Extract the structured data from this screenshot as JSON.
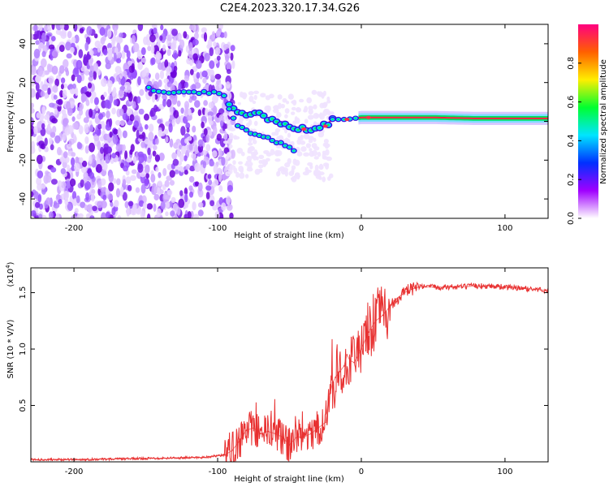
{
  "title": "C2E4.2023.320.17.34.G26",
  "chart_data": [
    {
      "type": "heatmap",
      "name": "spectrogram",
      "xlabel": "Height of straight line (km)",
      "ylabel": "Frequency (Hz)",
      "xlim": [
        -230,
        130
      ],
      "ylim": [
        -50,
        50
      ],
      "x_ticks": [
        -200,
        -100,
        0,
        100
      ],
      "x_tick_labels": [
        "-200",
        "-100",
        "0",
        "100"
      ],
      "y_ticks": [
        -40,
        -20,
        0,
        20,
        40
      ],
      "y_tick_labels": [
        "-40",
        "-20",
        "0",
        "20",
        "40"
      ],
      "noise_region_x": [
        -230,
        -93
      ],
      "signal_track": {
        "upper_branch": [
          [
            -148,
            17
          ],
          [
            -140,
            15.5
          ],
          [
            -130,
            15
          ],
          [
            -120,
            15
          ],
          [
            -110,
            15
          ],
          [
            -100,
            15
          ],
          [
            -95,
            13
          ]
        ],
        "main_branch": [
          [
            -92,
            8
          ],
          [
            -85,
            4
          ],
          [
            -80,
            2
          ],
          [
            -75,
            5
          ],
          [
            -70,
            3
          ],
          [
            -65,
            1
          ],
          [
            -60,
            0
          ],
          [
            -55,
            -1
          ],
          [
            -50,
            -2
          ],
          [
            -45,
            -3
          ],
          [
            -40,
            -4
          ],
          [
            -35,
            -4.5
          ],
          [
            -30,
            -3
          ],
          [
            -25,
            -2
          ],
          [
            -20,
            1
          ],
          [
            -15,
            1
          ],
          [
            -10,
            1
          ],
          [
            -5,
            1.5
          ],
          [
            0,
            2
          ],
          [
            20,
            2
          ],
          [
            50,
            2
          ],
          [
            80,
            1.5
          ],
          [
            100,
            1.5
          ],
          [
            130,
            1.5
          ]
        ],
        "lower_branch": [
          [
            -92,
            6
          ],
          [
            -85,
            -3
          ],
          [
            -78,
            -6
          ],
          [
            -70,
            -8
          ],
          [
            -60,
            -10
          ],
          [
            -55,
            -12
          ],
          [
            -50,
            -14
          ],
          [
            -45,
            -16
          ]
        ]
      },
      "colorbar": {
        "label": "Normalized spectral amplitude",
        "range": [
          0,
          1
        ],
        "ticks": [
          0.0,
          0.2,
          0.4,
          0.6,
          0.8
        ],
        "tick_labels": [
          "0.0",
          "0.2",
          "0.4",
          "0.6",
          "0.8"
        ],
        "colors": [
          "#ffffff",
          "#a000ff",
          "#0030ff",
          "#00e5ff",
          "#00ff30",
          "#ffee00",
          "#ff6000",
          "#ff0080"
        ]
      }
    },
    {
      "type": "line",
      "name": "snr",
      "xlabel": "Height of straight line (km)",
      "ylabel": "SNR (10 * V/V)",
      "scale_label": "(x10",
      "scale_exponent": "4",
      "scale_close": ")",
      "xlim": [
        -230,
        130
      ],
      "ylim": [
        0,
        1.72
      ],
      "x_ticks": [
        -200,
        -100,
        0,
        100
      ],
      "x_tick_labels": [
        "-200",
        "-100",
        "0",
        "100"
      ],
      "y_ticks": [
        0.5,
        1.0,
        1.5
      ],
      "y_tick_labels": [
        "0.5",
        "1.0",
        "1.5"
      ],
      "line_color": "#e83030",
      "series": [
        {
          "name": "SNR",
          "x": [
            -230,
            -200,
            -150,
            -110,
            -95,
            -90,
            -85,
            -80,
            -75,
            -70,
            -65,
            -60,
            -55,
            -50,
            -45,
            -40,
            -35,
            -30,
            -25,
            -22,
            -20,
            -18,
            -15,
            -12,
            -10,
            -8,
            -5,
            -2,
            0,
            5,
            10,
            15,
            20,
            25,
            30,
            35,
            40,
            45,
            50,
            60,
            70,
            80,
            90,
            100,
            110,
            120,
            130
          ],
          "values": [
            0.02,
            0.02,
            0.03,
            0.04,
            0.06,
            0.1,
            0.18,
            0.28,
            0.3,
            0.25,
            0.27,
            0.25,
            0.22,
            0.15,
            0.22,
            0.22,
            0.25,
            0.3,
            0.35,
            0.6,
            0.7,
            0.75,
            0.8,
            0.85,
            0.95,
            0.9,
            0.88,
            0.95,
            1.0,
            1.15,
            1.25,
            1.3,
            1.38,
            1.45,
            1.5,
            1.53,
            1.55,
            1.55,
            1.55,
            1.55,
            1.55,
            1.56,
            1.56,
            1.55,
            1.54,
            1.53,
            1.52
          ]
        }
      ]
    }
  ]
}
